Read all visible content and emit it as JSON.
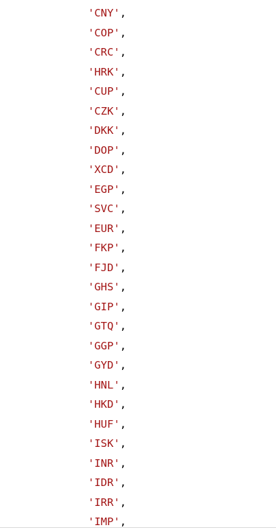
{
  "code": {
    "lines": [
      {
        "value": "'CNY'",
        "punct": ","
      },
      {
        "value": "'COP'",
        "punct": ","
      },
      {
        "value": "'CRC'",
        "punct": ","
      },
      {
        "value": "'HRK'",
        "punct": ","
      },
      {
        "value": "'CUP'",
        "punct": ","
      },
      {
        "value": "'CZK'",
        "punct": ","
      },
      {
        "value": "'DKK'",
        "punct": ","
      },
      {
        "value": "'DOP'",
        "punct": ","
      },
      {
        "value": "'XCD'",
        "punct": ","
      },
      {
        "value": "'EGP'",
        "punct": ","
      },
      {
        "value": "'SVC'",
        "punct": ","
      },
      {
        "value": "'EUR'",
        "punct": ","
      },
      {
        "value": "'FKP'",
        "punct": ","
      },
      {
        "value": "'FJD'",
        "punct": ","
      },
      {
        "value": "'GHS'",
        "punct": ","
      },
      {
        "value": "'GIP'",
        "punct": ","
      },
      {
        "value": "'GTQ'",
        "punct": ","
      },
      {
        "value": "'GGP'",
        "punct": ","
      },
      {
        "value": "'GYD'",
        "punct": ","
      },
      {
        "value": "'HNL'",
        "punct": ","
      },
      {
        "value": "'HKD'",
        "punct": ","
      },
      {
        "value": "'HUF'",
        "punct": ","
      },
      {
        "value": "'ISK'",
        "punct": ","
      },
      {
        "value": "'INR'",
        "punct": ","
      },
      {
        "value": "'IDR'",
        "punct": ","
      },
      {
        "value": "'IRR'",
        "punct": ","
      },
      {
        "value": "'IMP'",
        "punct": ","
      }
    ]
  },
  "colors": {
    "string": "#a31515",
    "punctuation": "#000000",
    "background": "#ffffff"
  }
}
